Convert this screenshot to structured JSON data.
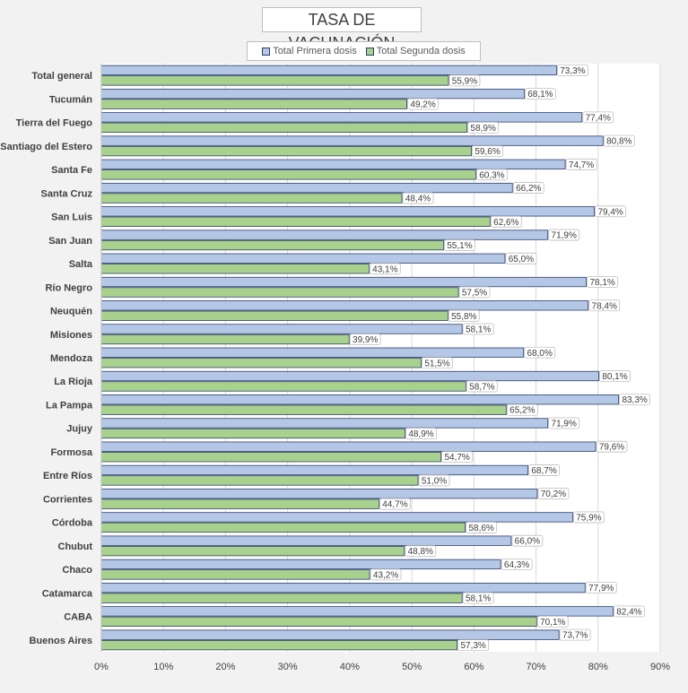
{
  "chart_data": {
    "type": "bar",
    "orientation": "horizontal",
    "title": "TASA DE VACUNACIÓN",
    "categories": [
      "Total general",
      "Tucumán",
      "Tierra del Fuego",
      "Santiago del Estero",
      "Santa Fe",
      "Santa Cruz",
      "San Luis",
      "San Juan",
      "Salta",
      "Río Negro",
      "Neuquén",
      "Misiones",
      "Mendoza",
      "La Rioja",
      "La Pampa",
      "Jujuy",
      "Formosa",
      "Entre Ríos",
      "Corrientes",
      "Córdoba",
      "Chubut",
      "Chaco",
      "Catamarca",
      "CABA",
      "Buenos Aires"
    ],
    "series": [
      {
        "name": "Total Primera dosis",
        "color": "#b4c7e7",
        "values": [
          73.3,
          68.1,
          77.4,
          80.8,
          74.7,
          66.2,
          79.4,
          71.9,
          65.0,
          78.1,
          78.4,
          58.1,
          68.0,
          80.1,
          83.3,
          71.9,
          79.6,
          68.7,
          70.2,
          75.9,
          66.0,
          64.3,
          77.9,
          82.4,
          73.7
        ],
        "labels": [
          "73,3%",
          "68,1%",
          "77,4%",
          "80,8%",
          "74,7%",
          "66,2%",
          "79,4%",
          "71,9%",
          "65,0%",
          "78,1%",
          "78,4%",
          "58,1%",
          "68,0%",
          "80,1%",
          "83,3%",
          "71,9%",
          "79,6%",
          "68,7%",
          "70,2%",
          "75,9%",
          "66,0%",
          "64,3%",
          "77,9%",
          "82,4%",
          "73,7%"
        ]
      },
      {
        "name": "Total Segunda dosis",
        "color": "#a9d18e",
        "values": [
          55.9,
          49.2,
          58.9,
          59.6,
          60.3,
          48.4,
          62.6,
          55.1,
          43.1,
          57.5,
          55.8,
          39.9,
          51.5,
          58.7,
          65.2,
          48.9,
          54.7,
          51.0,
          44.7,
          58.6,
          48.8,
          43.2,
          58.1,
          70.1,
          57.3
        ],
        "labels": [
          "55,9%",
          "49,2%",
          "58,9%",
          "59,6%",
          "60,3%",
          "48,4%",
          "62,6%",
          "55,1%",
          "43,1%",
          "57,5%",
          "55,8%",
          "39,9%",
          "51,5%",
          "58,7%",
          "65,2%",
          "48,9%",
          "54,7%",
          "51,0%",
          "44,7%",
          "58,6%",
          "48,8%",
          "43,2%",
          "58,1%",
          "70,1%",
          "57,3%"
        ]
      }
    ],
    "xlim": [
      0,
      90
    ],
    "xticks": [
      0,
      10,
      20,
      30,
      40,
      50,
      60,
      70,
      80,
      90
    ],
    "xtick_labels": [
      "0%",
      "10%",
      "20%",
      "30%",
      "40%",
      "50%",
      "60%",
      "70%",
      "80%",
      "90%"
    ],
    "legend_position": "top-center",
    "grid": true
  }
}
